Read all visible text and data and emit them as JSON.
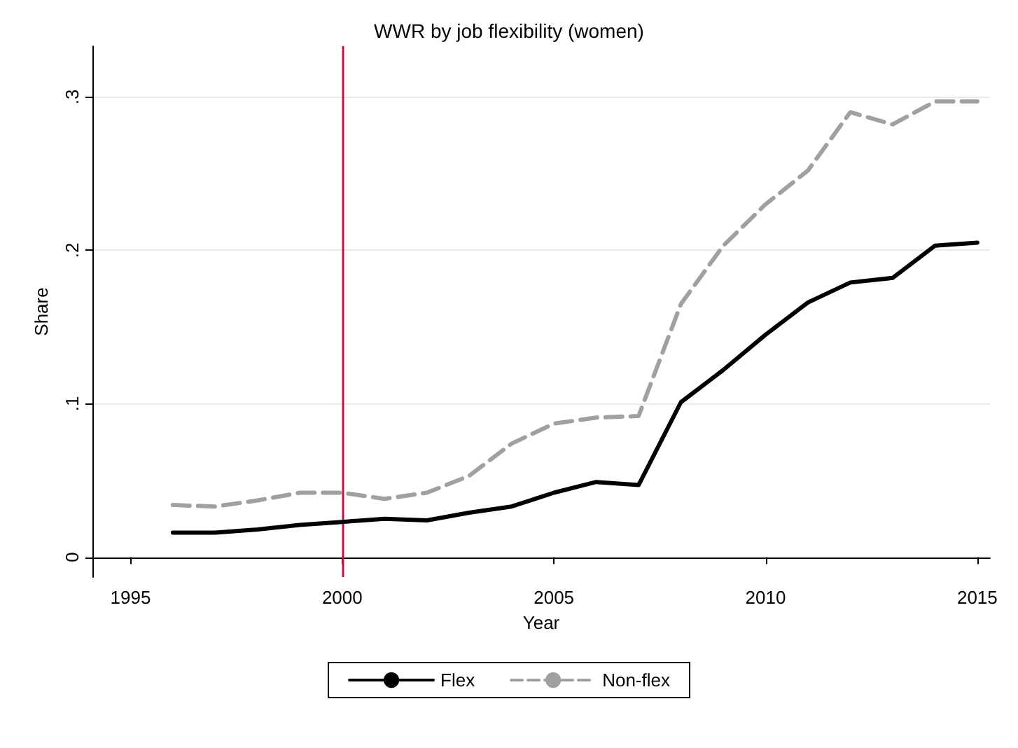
{
  "chart_data": {
    "type": "line",
    "title": "WWR by job flexibility (women)",
    "xlabel": "Year",
    "ylabel": "Share",
    "x": [
      1996,
      1997,
      1998,
      1999,
      2000,
      2001,
      2002,
      2003,
      2004,
      2005,
      2006,
      2007,
      2008,
      2009,
      2010,
      2011,
      2012,
      2013,
      2014,
      2015
    ],
    "series": [
      {
        "name": "Flex",
        "color": "#000000",
        "line_style": "solid",
        "values": [
          0.016,
          0.016,
          0.018,
          0.021,
          0.023,
          0.025,
          0.024,
          0.029,
          0.033,
          0.042,
          0.049,
          0.047,
          0.101,
          0.122,
          0.145,
          0.166,
          0.179,
          0.182,
          0.203,
          0.205
        ]
      },
      {
        "name": "Non-flex",
        "color": "#a0a0a0",
        "line_style": "dashed",
        "values": [
          0.034,
          0.033,
          0.037,
          0.042,
          0.042,
          0.038,
          0.042,
          0.053,
          0.074,
          0.087,
          0.091,
          0.092,
          0.165,
          0.203,
          0.23,
          0.252,
          0.29,
          0.282,
          0.297,
          0.297
        ]
      }
    ],
    "xlim": [
      1994.1,
      2015.3
    ],
    "xticks": [
      1995,
      2000,
      2005,
      2010,
      2015
    ],
    "ylim": [
      -0.013,
      0.333
    ],
    "yticks": [
      0,
      {
        "value": 0.1,
        "label": ".1"
      },
      {
        "value": 0.2,
        "label": ".2"
      },
      {
        "value": 0.3,
        "label": ".3"
      }
    ],
    "ref_lines": [
      {
        "axis": "x",
        "value": 2000,
        "color": "#c8143c"
      }
    ],
    "grid": "y",
    "legend": "bottom",
    "marker": "none"
  }
}
